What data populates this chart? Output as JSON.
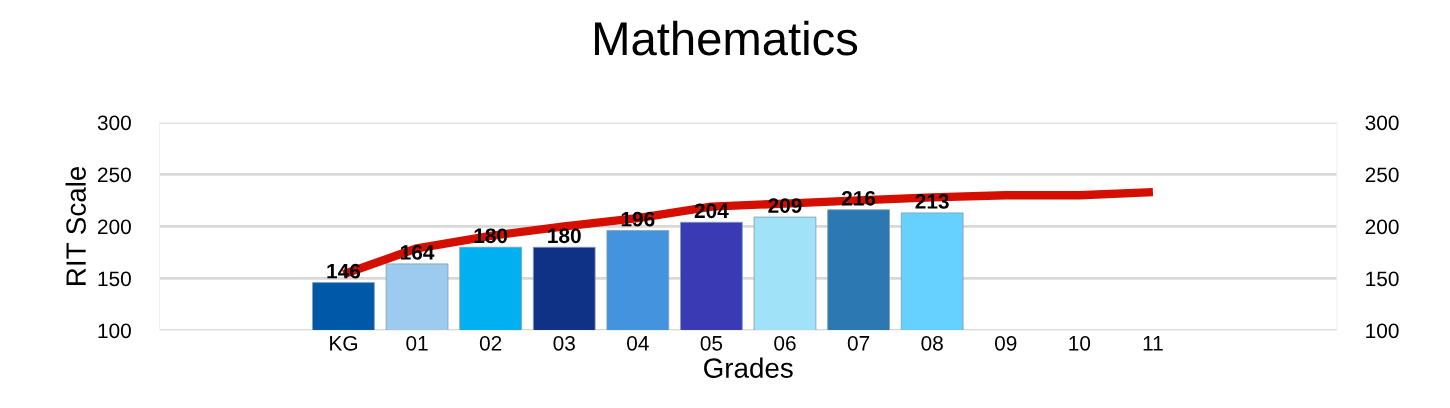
{
  "chart_data": {
    "type": "bar",
    "title": "Mathematics",
    "xlabel": "Grades",
    "ylabel": "RIT Scale",
    "categories": [
      null,
      null,
      "KG",
      "01",
      "02",
      "03",
      "04",
      "05",
      "06",
      "07",
      "08",
      "09",
      "10",
      "11",
      null,
      null
    ],
    "series": [
      {
        "colors": [
          null,
          null,
          "#0058a8",
          "#9dcbef",
          "#00b0f0",
          "#0f3287",
          "#4393de",
          "#3a3ab5",
          "#a0e2f7",
          "#2b78b3",
          "#66d1fe",
          null,
          null,
          null,
          null,
          null
        ],
        "values": [
          null,
          null,
          146,
          164,
          180,
          180,
          196,
          204,
          209,
          216,
          213,
          null,
          null,
          null,
          null,
          null
        ],
        "data_labels": true
      },
      {
        "type": "line",
        "color": "#d40f00",
        "values": [
          null,
          null,
          154,
          179,
          191,
          200,
          208,
          219,
          222,
          225,
          228,
          230,
          230,
          233,
          null,
          null
        ]
      }
    ],
    "ylim": [
      100,
      300
    ],
    "yticks": [
      100,
      150,
      200,
      250,
      300
    ],
    "y2lim": [
      100,
      300
    ],
    "y2ticks": [
      100,
      150,
      200,
      250,
      300
    ],
    "grid": "y"
  }
}
